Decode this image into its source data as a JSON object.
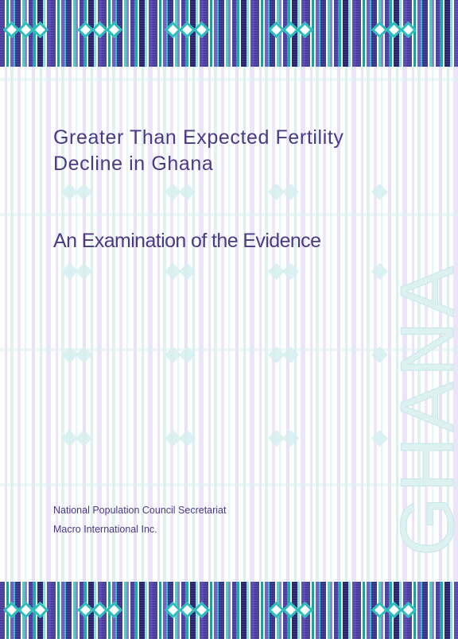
{
  "cover": {
    "title_line1": "Greater Than Expected Fertility",
    "title_line2": "Decline in Ghana",
    "subtitle": "An Examination of the Evidence",
    "authors": [
      "National Population Council Secretariat",
      "Macro International Inc."
    ],
    "watermark": "GHANA"
  },
  "colors": {
    "title_text": "#4b3a84",
    "band_dark": "#4a3b9c",
    "band_teal": "#1c9b9b",
    "watermark": "#dff2f1"
  }
}
